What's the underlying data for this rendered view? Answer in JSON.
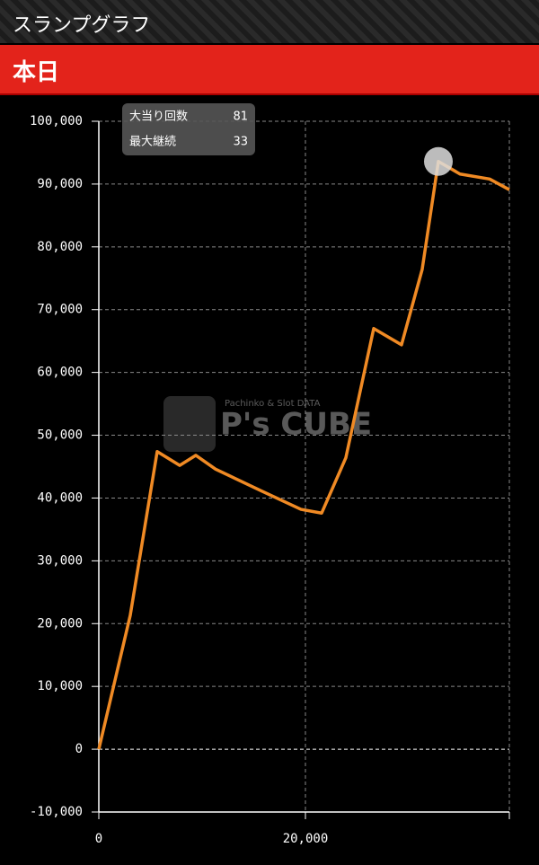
{
  "header": {
    "title": "スランプグラフ",
    "tab": "本日"
  },
  "stats": [
    {
      "label": "大当り回数",
      "value": "81"
    },
    {
      "label": "最大継続",
      "value": "33"
    }
  ],
  "watermark": {
    "top": "Pachinko & Slot DATA",
    "logo": "P's CUBE"
  },
  "chart_data": {
    "type": "line",
    "x": [
      0,
      3040,
      5650,
      7830,
      9390,
      11300,
      13220,
      15650,
      19570,
      21570,
      23910,
      26610,
      29300,
      31300,
      32870,
      34960,
      37830,
      39740
    ],
    "series": [
      {
        "color": "#f08a24",
        "values": [
          0,
          21300,
          47400,
          45200,
          46800,
          44600,
          43100,
          41200,
          38200,
          37600,
          46400,
          67000,
          64400,
          76400,
          93600,
          91600,
          90800,
          89100
        ]
      }
    ],
    "xlim": [
      0,
      39740
    ],
    "ylim": [
      -10000,
      100000
    ],
    "xticks": [
      0,
      {
        "value": 20000,
        "label": "20,000"
      }
    ],
    "yticks": [
      {
        "value": -10000,
        "label": "-10,000"
      },
      0,
      {
        "value": 10000,
        "label": "10,000"
      },
      {
        "value": 20000,
        "label": "20,000"
      },
      {
        "value": 30000,
        "label": "30,000"
      },
      {
        "value": 40000,
        "label": "40,000"
      },
      {
        "value": 50000,
        "label": "50,000"
      },
      {
        "value": 60000,
        "label": "60,000"
      },
      {
        "value": 70000,
        "label": "70,000"
      },
      {
        "value": 80000,
        "label": "80,000"
      },
      {
        "value": 90000,
        "label": "90,000"
      },
      {
        "value": 100000,
        "label": "100,000"
      }
    ],
    "grid": true
  }
}
